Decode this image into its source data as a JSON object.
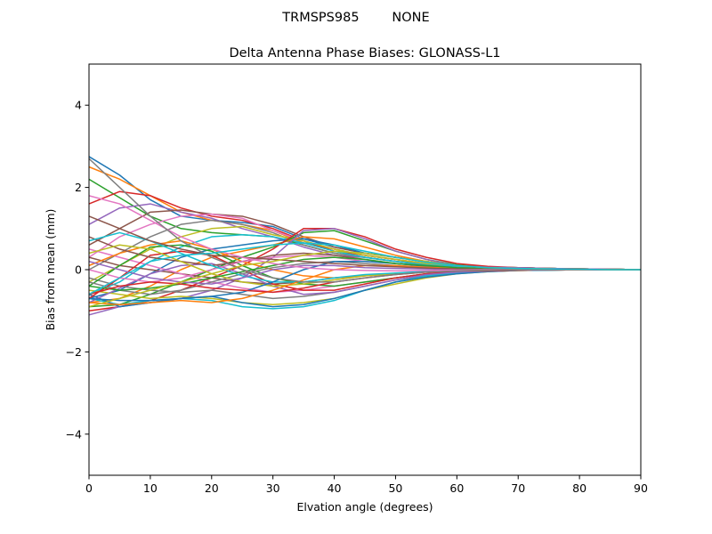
{
  "chart_data": {
    "type": "line",
    "suptitle": "TRMSPS985        NONE",
    "title": "Delta Antenna Phase Biases: GLONASS-L1",
    "xlabel": "Elvation angle (degrees)",
    "ylabel": "Bias from mean (mm)",
    "xlim": [
      0,
      90
    ],
    "ylim": [
      -5,
      5
    ],
    "xticks": [
      0,
      10,
      20,
      30,
      40,
      50,
      60,
      70,
      80,
      90
    ],
    "yticks": [
      -4,
      -2,
      0,
      2,
      4
    ],
    "grid": false,
    "legend": "none",
    "x": [
      0,
      5,
      10,
      15,
      20,
      25,
      30,
      35,
      40,
      45,
      50,
      55,
      60,
      65,
      70,
      75,
      80,
      85,
      90
    ],
    "colors": [
      "#1f77b4",
      "#ff7f0e",
      "#2ca02c",
      "#d62728",
      "#9467bd",
      "#8c564b",
      "#e377c2",
      "#7f7f7f",
      "#bcbd22",
      "#17becf"
    ],
    "series": [
      {
        "values": [
          2.75,
          2.3,
          1.7,
          1.3,
          1.2,
          1.15,
          1.05,
          0.75,
          0.55,
          0.4,
          0.3,
          0.2,
          0.1,
          0.05,
          0.05,
          0.03,
          0.02,
          0.01,
          0.0
        ]
      },
      {
        "values": [
          2.5,
          2.2,
          1.8,
          1.4,
          1.2,
          1.1,
          0.95,
          0.65,
          0.5,
          0.35,
          0.25,
          0.15,
          0.1,
          0.05,
          0.05,
          0.03,
          0.02,
          0.01,
          0.0
        ]
      },
      {
        "values": [
          2.2,
          1.75,
          1.3,
          1.0,
          0.9,
          0.85,
          0.8,
          0.6,
          0.4,
          0.3,
          0.2,
          0.15,
          0.1,
          0.05,
          0.04,
          0.03,
          0.02,
          0.01,
          0.0
        ]
      },
      {
        "values": [
          1.6,
          1.9,
          1.8,
          1.5,
          1.3,
          1.2,
          1.0,
          0.7,
          0.45,
          0.35,
          0.25,
          0.15,
          0.08,
          0.05,
          0.04,
          0.03,
          0.02,
          0.01,
          0.0
        ]
      },
      {
        "values": [
          1.1,
          1.5,
          1.6,
          1.4,
          1.25,
          1.0,
          0.8,
          0.55,
          0.35,
          0.3,
          0.2,
          0.12,
          0.08,
          0.05,
          0.04,
          0.03,
          0.02,
          0.01,
          0.0
        ]
      },
      {
        "values": [
          0.6,
          1.0,
          1.4,
          1.45,
          1.35,
          1.3,
          1.1,
          0.8,
          0.55,
          0.4,
          0.3,
          0.2,
          0.1,
          0.06,
          0.05,
          0.03,
          0.02,
          0.01,
          0.0
        ]
      },
      {
        "values": [
          0.3,
          0.8,
          1.1,
          1.3,
          1.35,
          1.25,
          0.95,
          0.7,
          0.5,
          0.35,
          0.25,
          0.15,
          0.1,
          0.05,
          0.04,
          0.03,
          0.02,
          0.01,
          0.0
        ]
      },
      {
        "values": [
          0.0,
          0.4,
          0.8,
          1.1,
          1.2,
          1.1,
          0.9,
          0.6,
          0.4,
          0.3,
          0.2,
          0.12,
          0.08,
          0.05,
          0.04,
          0.03,
          0.02,
          0.01,
          0.0
        ]
      },
      {
        "values": [
          -0.3,
          0.1,
          0.5,
          0.8,
          1.0,
          1.05,
          0.85,
          0.7,
          0.5,
          0.35,
          0.25,
          0.15,
          0.1,
          0.06,
          0.05,
          0.03,
          0.02,
          0.01,
          0.0
        ]
      },
      {
        "values": [
          -0.6,
          -0.3,
          0.2,
          0.55,
          0.8,
          0.85,
          0.8,
          0.65,
          0.45,
          0.3,
          0.2,
          0.12,
          0.08,
          0.05,
          0.04,
          0.03,
          0.02,
          0.01,
          0.0
        ]
      },
      {
        "values": [
          -0.7,
          -0.5,
          -0.1,
          0.3,
          0.5,
          0.6,
          0.7,
          0.75,
          0.6,
          0.4,
          0.3,
          0.2,
          0.1,
          0.06,
          0.05,
          0.03,
          0.02,
          0.01,
          0.0
        ]
      },
      {
        "values": [
          -0.8,
          -0.7,
          -0.4,
          0.0,
          0.3,
          0.45,
          0.6,
          0.8,
          0.75,
          0.55,
          0.35,
          0.2,
          0.1,
          0.06,
          0.05,
          0.03,
          0.02,
          0.01,
          0.0
        ]
      },
      {
        "values": [
          -0.9,
          -0.85,
          -0.6,
          -0.3,
          0.0,
          0.3,
          0.55,
          0.9,
          0.95,
          0.7,
          0.45,
          0.25,
          0.12,
          0.06,
          0.05,
          0.03,
          0.02,
          0.01,
          0.0
        ]
      },
      {
        "values": [
          -1.0,
          -0.9,
          -0.75,
          -0.5,
          -0.2,
          0.1,
          0.5,
          1.0,
          1.0,
          0.8,
          0.5,
          0.3,
          0.15,
          0.08,
          0.05,
          0.03,
          0.02,
          0.01,
          0.0
        ]
      },
      {
        "values": [
          -1.1,
          -0.9,
          -0.8,
          -0.7,
          -0.5,
          -0.2,
          0.3,
          0.95,
          1.0,
          0.75,
          0.45,
          0.25,
          0.1,
          0.06,
          0.05,
          0.03,
          0.02,
          0.01,
          0.0
        ]
      },
      {
        "values": [
          0.3,
          0.1,
          0.0,
          -0.1,
          -0.2,
          -0.3,
          -0.35,
          -0.3,
          -0.2,
          -0.15,
          -0.1,
          -0.05,
          -0.03,
          -0.02,
          -0.01,
          -0.01,
          0.0,
          0.0,
          0.0
        ]
      },
      {
        "values": [
          0.5,
          0.3,
          0.1,
          -0.1,
          -0.3,
          -0.45,
          -0.55,
          -0.5,
          -0.4,
          -0.3,
          -0.2,
          -0.1,
          -0.05,
          -0.03,
          -0.02,
          -0.01,
          0.0,
          0.0,
          0.0
        ]
      },
      {
        "values": [
          -0.2,
          -0.4,
          -0.5,
          -0.55,
          -0.5,
          -0.6,
          -0.7,
          -0.65,
          -0.55,
          -0.4,
          -0.25,
          -0.15,
          -0.08,
          -0.04,
          -0.02,
          -0.01,
          0.0,
          0.0,
          0.0
        ]
      },
      {
        "values": [
          -0.5,
          -0.6,
          -0.7,
          -0.65,
          -0.7,
          -0.8,
          -0.85,
          -0.8,
          -0.7,
          -0.5,
          -0.35,
          -0.2,
          -0.1,
          -0.05,
          -0.02,
          -0.01,
          0.0,
          0.0,
          0.0
        ]
      },
      {
        "values": [
          -0.7,
          -0.85,
          -0.75,
          -0.7,
          -0.75,
          -0.9,
          -0.95,
          -0.9,
          -0.75,
          -0.5,
          -0.3,
          -0.15,
          -0.08,
          -0.04,
          -0.02,
          -0.01,
          0.0,
          0.0,
          0.0
        ]
      },
      {
        "values": [
          -0.6,
          -0.9,
          -0.8,
          -0.7,
          -0.65,
          -0.8,
          -0.9,
          -0.85,
          -0.7,
          -0.5,
          -0.3,
          -0.18,
          -0.1,
          -0.05,
          -0.02,
          -0.01,
          0.0,
          0.0,
          0.0
        ]
      },
      {
        "values": [
          0.1,
          0.4,
          0.6,
          0.7,
          0.5,
          0.2,
          0.0,
          -0.15,
          -0.2,
          -0.15,
          -0.1,
          -0.05,
          -0.03,
          -0.02,
          -0.01,
          0.0,
          0.0,
          0.0,
          0.0
        ]
      },
      {
        "values": [
          -0.4,
          0.1,
          0.55,
          0.6,
          0.45,
          0.1,
          -0.2,
          -0.35,
          -0.4,
          -0.3,
          -0.2,
          -0.1,
          -0.05,
          -0.03,
          -0.01,
          0.0,
          0.0,
          0.0,
          0.0
        ]
      },
      {
        "values": [
          -0.7,
          -0.2,
          0.35,
          0.45,
          0.35,
          0.0,
          -0.35,
          -0.5,
          -0.5,
          -0.35,
          -0.2,
          -0.1,
          -0.05,
          -0.03,
          -0.01,
          0.0,
          0.0,
          0.0,
          0.0
        ]
      },
      {
        "values": [
          -0.8,
          -0.45,
          -0.1,
          0.1,
          0.15,
          -0.1,
          -0.4,
          -0.6,
          -0.55,
          -0.4,
          -0.25,
          -0.12,
          -0.06,
          -0.03,
          -0.01,
          0.0,
          0.0,
          0.0,
          0.0
        ]
      },
      {
        "values": [
          0.8,
          0.5,
          0.3,
          0.2,
          0.1,
          0.2,
          0.35,
          0.4,
          0.35,
          0.25,
          0.15,
          0.1,
          0.05,
          0.03,
          0.02,
          0.01,
          0.0,
          0.0,
          0.0
        ]
      },
      {
        "values": [
          0.0,
          -0.2,
          -0.3,
          -0.2,
          0.0,
          0.2,
          0.3,
          0.35,
          0.3,
          0.2,
          0.15,
          0.1,
          0.05,
          0.03,
          0.02,
          0.01,
          0.0,
          0.0,
          0.0
        ]
      },
      {
        "values": [
          -0.3,
          -0.5,
          -0.6,
          -0.5,
          -0.3,
          -0.1,
          0.05,
          0.15,
          0.2,
          0.15,
          0.1,
          0.06,
          0.04,
          0.02,
          0.01,
          0.0,
          0.0,
          0.0,
          0.0
        ]
      },
      {
        "values": [
          0.4,
          0.6,
          0.5,
          0.2,
          -0.1,
          -0.3,
          -0.4,
          -0.35,
          -0.25,
          -0.15,
          -0.1,
          -0.05,
          -0.03,
          -0.02,
          -0.01,
          0.0,
          0.0,
          0.0,
          0.0
        ]
      },
      {
        "values": [
          0.7,
          0.9,
          0.7,
          0.4,
          0.1,
          -0.15,
          -0.3,
          -0.3,
          -0.2,
          -0.12,
          -0.08,
          -0.04,
          -0.02,
          -0.01,
          0.0,
          0.0,
          0.0,
          0.0,
          0.0
        ]
      },
      {
        "values": [
          -0.7,
          -0.75,
          -0.75,
          -0.7,
          -0.65,
          -0.55,
          -0.3,
          0.0,
          0.2,
          0.2,
          0.15,
          0.08,
          0.04,
          0.02,
          0.01,
          0.0,
          0.0,
          0.0,
          0.0
        ]
      },
      {
        "values": [
          -0.8,
          -0.85,
          -0.8,
          -0.75,
          -0.8,
          -0.7,
          -0.5,
          -0.25,
          0.0,
          0.1,
          0.1,
          0.06,
          0.03,
          0.02,
          0.01,
          0.0,
          0.0,
          0.0,
          0.0
        ]
      },
      {
        "values": [
          -0.4,
          -0.5,
          -0.45,
          -0.35,
          -0.2,
          -0.05,
          0.1,
          0.25,
          0.3,
          0.25,
          0.15,
          0.1,
          0.05,
          0.03,
          0.02,
          0.01,
          0.0,
          0.0,
          0.0
        ]
      },
      {
        "values": [
          -0.6,
          -0.4,
          -0.3,
          -0.35,
          -0.45,
          -0.5,
          -0.55,
          -0.45,
          -0.3,
          -0.2,
          -0.12,
          -0.06,
          -0.03,
          -0.02,
          -0.01,
          0.0,
          0.0,
          0.0,
          0.0
        ]
      },
      {
        "values": [
          0.2,
          0.0,
          -0.2,
          -0.3,
          -0.35,
          -0.2,
          0.0,
          0.1,
          0.1,
          0.05,
          0.03,
          0.02,
          0.01,
          0.0,
          0.0,
          0.0,
          0.0,
          0.0,
          0.0
        ]
      },
      {
        "values": [
          1.3,
          1.0,
          0.7,
          0.5,
          0.35,
          0.3,
          0.25,
          0.2,
          0.15,
          0.1,
          0.07,
          0.04,
          0.02,
          0.01,
          0.01,
          0.0,
          0.0,
          0.0,
          0.0
        ]
      },
      {
        "values": [
          1.8,
          1.6,
          1.2,
          0.8,
          0.5,
          0.3,
          0.15,
          0.05,
          0.0,
          -0.02,
          -0.03,
          -0.02,
          -0.01,
          0.0,
          0.0,
          0.0,
          0.0,
          0.0,
          0.0
        ]
      },
      {
        "values": [
          2.7,
          2.0,
          1.3,
          0.7,
          0.3,
          0.0,
          -0.2,
          -0.3,
          -0.3,
          -0.2,
          -0.12,
          -0.06,
          -0.03,
          -0.01,
          0.0,
          0.0,
          0.0,
          0.0,
          0.0
        ]
      },
      {
        "values": [
          -0.9,
          -0.7,
          -0.5,
          -0.3,
          -0.1,
          0.1,
          0.2,
          0.35,
          0.45,
          0.4,
          0.3,
          0.2,
          0.1,
          0.05,
          0.03,
          0.02,
          0.01,
          0.0,
          0.0
        ]
      },
      {
        "values": [
          -0.6,
          -0.2,
          0.2,
          0.35,
          0.4,
          0.5,
          0.6,
          0.65,
          0.6,
          0.45,
          0.3,
          0.18,
          0.1,
          0.05,
          0.03,
          0.02,
          0.01,
          0.0,
          0.0
        ]
      }
    ]
  }
}
